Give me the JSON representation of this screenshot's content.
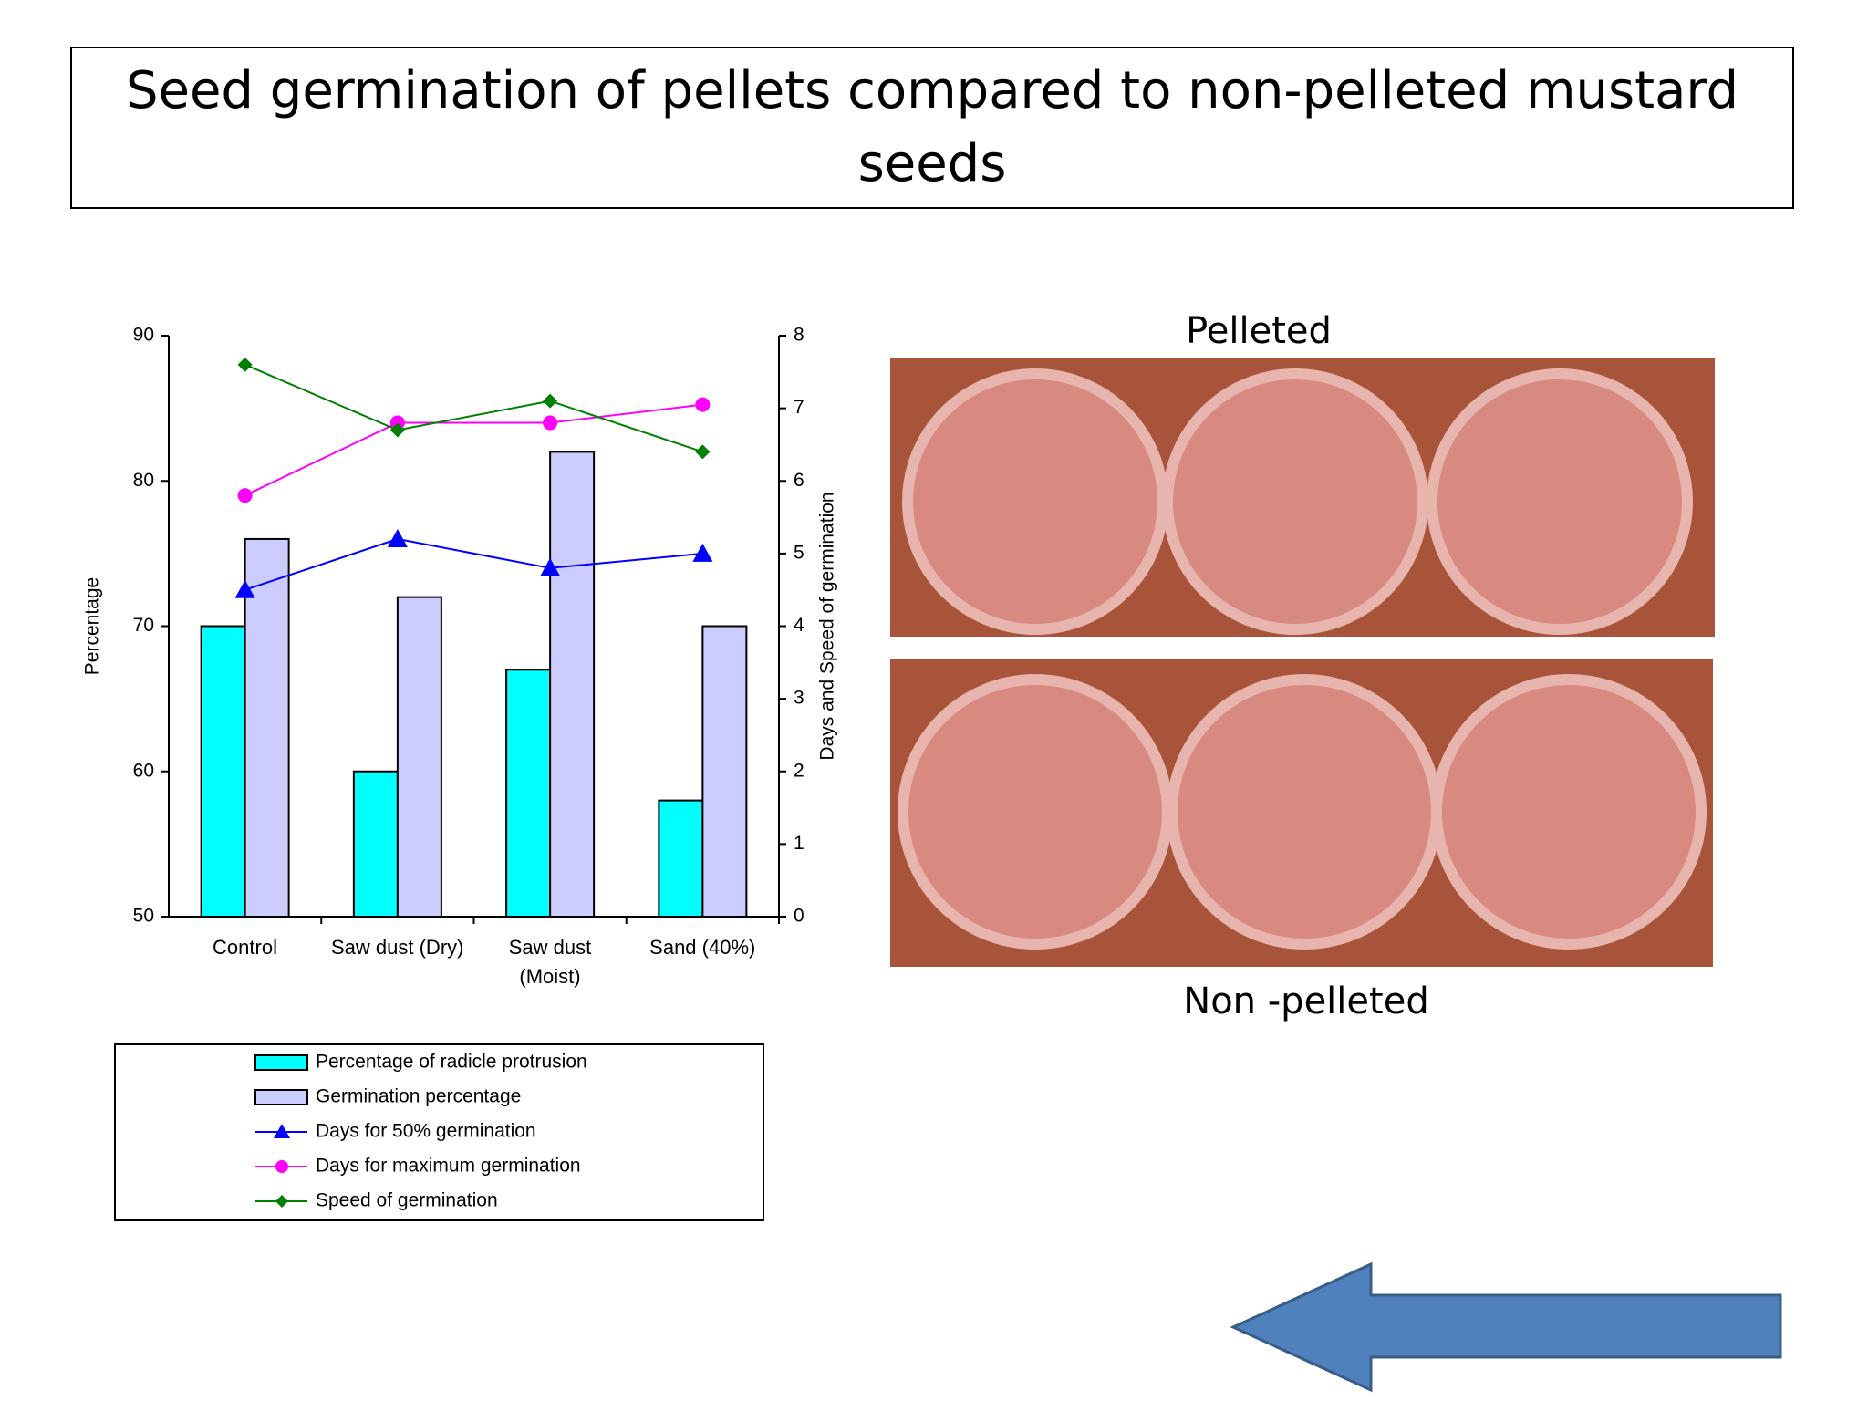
{
  "chart_data": {
    "type": "bar",
    "title": "Seed germination of pellets compared  to  non-pelleted mustard seeds",
    "annotations": [
      "Pelleted",
      "Non -pelleted"
    ],
    "ylabel": "Percentage",
    "y2label": "Days and Speed of germination",
    "categories": [
      "Control",
      "Saw dust (Dry)",
      "Saw dust\n(Moist)",
      "Sand (40%)"
    ],
    "ylim": [
      50,
      90
    ],
    "yticks": [
      50,
      60,
      70,
      80,
      90
    ],
    "y2lim": [
      0,
      8
    ],
    "y2ticks": [
      0,
      1,
      2,
      3,
      4,
      5,
      6,
      7,
      8
    ],
    "series": [
      {
        "name": "Percentage of radicle protrusion",
        "type": "bar",
        "color": "#00ffff",
        "values": [
          70,
          60,
          67,
          58
        ]
      },
      {
        "name": "Germination percentage",
        "type": "bar",
        "color": "#ccccff",
        "values": [
          76,
          72,
          82,
          70
        ]
      },
      {
        "name": "Days for 50% germination",
        "type": "line",
        "axis": "y2",
        "marker": "triangle",
        "color": "#0000ff",
        "values": [
          4.5,
          5.2,
          4.8,
          5.0
        ]
      },
      {
        "name": "Days for maximum germination",
        "type": "line",
        "axis": "y2",
        "marker": "circle",
        "color": "#ff00ff",
        "values": [
          5.8,
          6.8,
          6.8,
          7.05
        ]
      },
      {
        "name": "Speed of germination",
        "type": "line",
        "axis": "y2",
        "marker": "diamond",
        "color": "#008000",
        "values": [
          7.6,
          6.7,
          7.1,
          6.4
        ]
      }
    ]
  }
}
